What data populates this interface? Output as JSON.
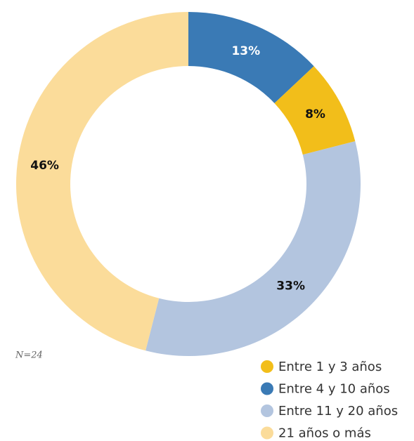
{
  "chart_data": {
    "type": "pie",
    "donut": true,
    "categories": [
      "Entre 4 y 10 años",
      "Entre 1 y 3 años",
      "Entre 11 y 20 años",
      "21 años o más"
    ],
    "values": [
      13,
      8,
      33,
      46
    ],
    "value_labels": [
      "13%",
      "8%",
      "33%",
      "46%"
    ],
    "colors": [
      "#3a7ab5",
      "#f2be1a",
      "#b3c5df",
      "#fbdc9a"
    ],
    "note": "N=24"
  }
}
